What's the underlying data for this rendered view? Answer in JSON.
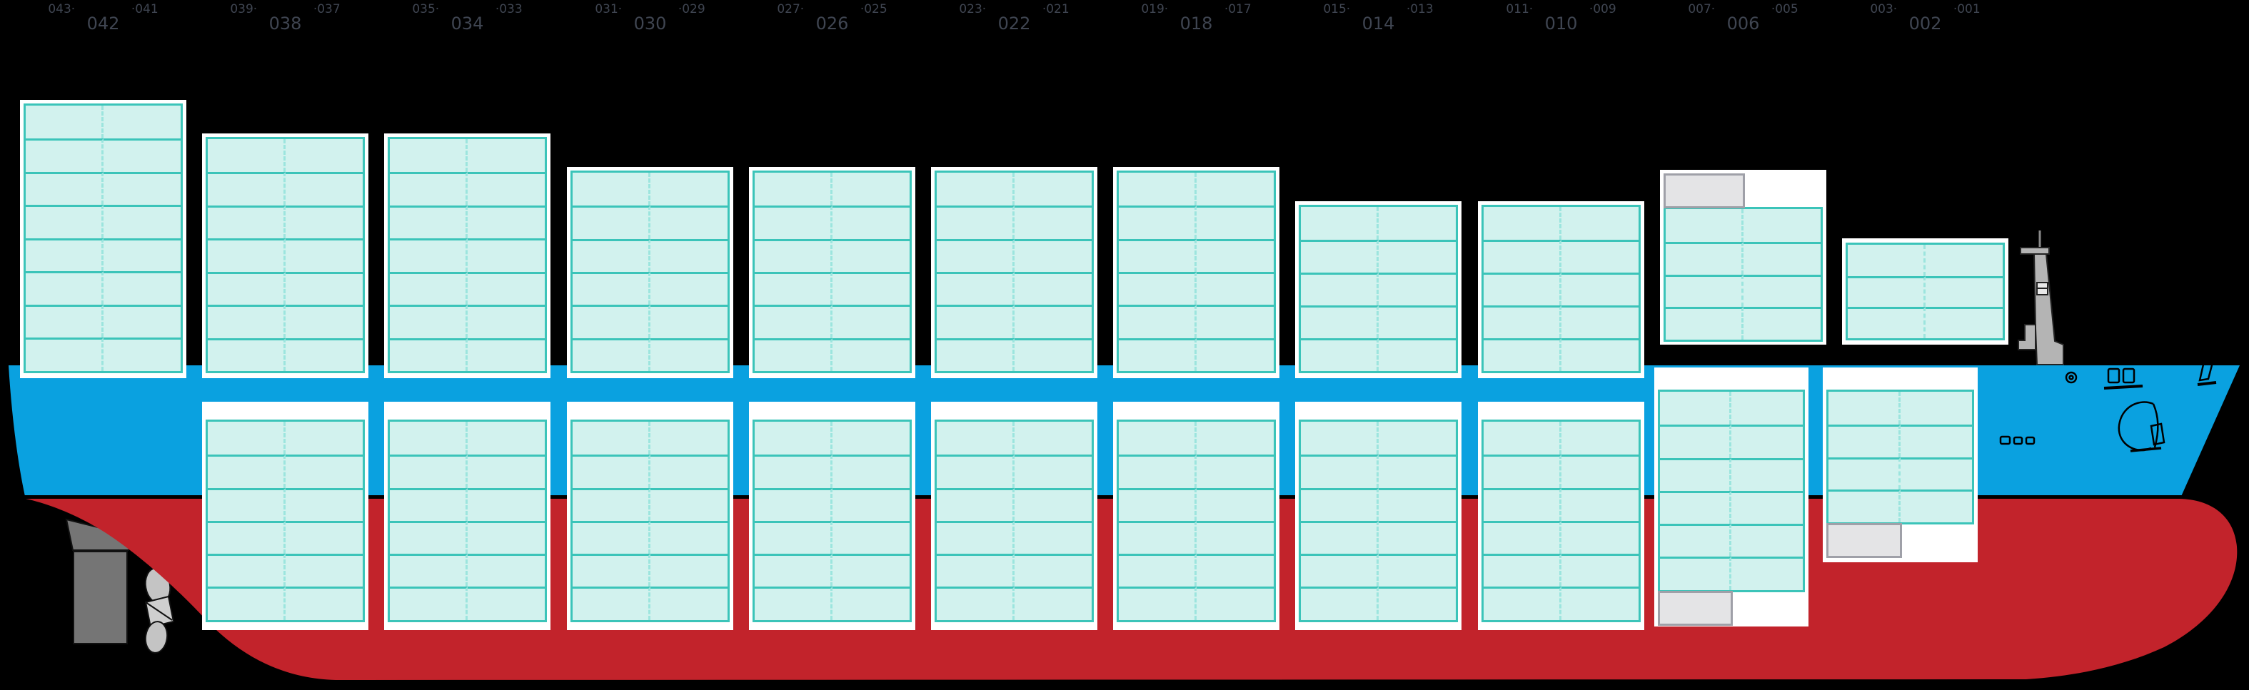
{
  "scene": {
    "type": "container-ship-side-bay-plan"
  },
  "colors": {
    "background": "#000000",
    "hull_topside_blue": "#0aa1e0",
    "hull_bottom_red": "#c2232b",
    "waterline_black": "#000000",
    "slot_fill": "#d2f2ee",
    "slot_border": "#3bc4b9",
    "slot_divider": "#9ce5de",
    "bay_frame_white": "#ffffff",
    "blocked_cell_fill": "#e4e4e6",
    "blocked_cell_border": "#9fa0a8",
    "label_text": "#3f4551",
    "mast_gray": "#b4b4b4",
    "rudder_gray": "#757575",
    "propeller_gray": "#c4c4c4"
  },
  "glyphs": [
    "rudder-icon",
    "propeller-icon",
    "foremast-icon",
    "anchor-icon",
    "porthole-icon",
    "bridge-windows-icon",
    "bow-mark-icon",
    "draft-marks-icon"
  ],
  "bays": [
    {
      "id": "042",
      "labels": {
        "aft_odd": "043·",
        "even": "042",
        "fore_odd": "·041"
      },
      "above_deck": {
        "rows": 8,
        "cols": 2
      },
      "below_deck": null
    },
    {
      "id": "038",
      "labels": {
        "aft_odd": "039·",
        "even": "038",
        "fore_odd": "·037"
      },
      "above_deck": {
        "rows": 7,
        "cols": 2
      },
      "below_deck": {
        "rows": 6,
        "cols": 2
      }
    },
    {
      "id": "034",
      "labels": {
        "aft_odd": "035·",
        "even": "034",
        "fore_odd": "·033"
      },
      "above_deck": {
        "rows": 7,
        "cols": 2
      },
      "below_deck": {
        "rows": 6,
        "cols": 2
      }
    },
    {
      "id": "030",
      "labels": {
        "aft_odd": "031·",
        "even": "030",
        "fore_odd": "·029"
      },
      "above_deck": {
        "rows": 6,
        "cols": 2
      },
      "below_deck": {
        "rows": 6,
        "cols": 2
      }
    },
    {
      "id": "026",
      "labels": {
        "aft_odd": "027·",
        "even": "026",
        "fore_odd": "·025"
      },
      "above_deck": {
        "rows": 6,
        "cols": 2
      },
      "below_deck": {
        "rows": 6,
        "cols": 2
      }
    },
    {
      "id": "022",
      "labels": {
        "aft_odd": "023·",
        "even": "022",
        "fore_odd": "·021"
      },
      "above_deck": {
        "rows": 6,
        "cols": 2
      },
      "below_deck": {
        "rows": 6,
        "cols": 2
      }
    },
    {
      "id": "018",
      "labels": {
        "aft_odd": "019·",
        "even": "018",
        "fore_odd": "·017"
      },
      "above_deck": {
        "rows": 6,
        "cols": 2
      },
      "below_deck": {
        "rows": 6,
        "cols": 2
      }
    },
    {
      "id": "014",
      "labels": {
        "aft_odd": "015·",
        "even": "014",
        "fore_odd": "·013"
      },
      "above_deck": {
        "rows": 5,
        "cols": 2
      },
      "below_deck": {
        "rows": 6,
        "cols": 2
      }
    },
    {
      "id": "010",
      "labels": {
        "aft_odd": "011·",
        "even": "010",
        "fore_odd": "·009"
      },
      "above_deck": {
        "rows": 5,
        "cols": 2
      },
      "below_deck": {
        "rows": 6,
        "cols": 2
      }
    },
    {
      "id": "006",
      "labels": {
        "aft_odd": "007·",
        "even": "006",
        "fore_odd": "·005"
      },
      "above_deck": {
        "rows": 4,
        "cols": 2,
        "special_top_left_gray_cell": true
      },
      "below_deck": {
        "rows": 6,
        "cols": 2,
        "special_bottom_left_gray_cell": true
      }
    },
    {
      "id": "002",
      "labels": {
        "aft_odd": "003·",
        "even": "002",
        "fore_odd": "·001"
      },
      "above_deck": {
        "rows": 3,
        "cols": 2
      },
      "below_deck": {
        "rows": 4,
        "cols": 2,
        "special_bottom_left_gray_cell": true
      }
    }
  ]
}
